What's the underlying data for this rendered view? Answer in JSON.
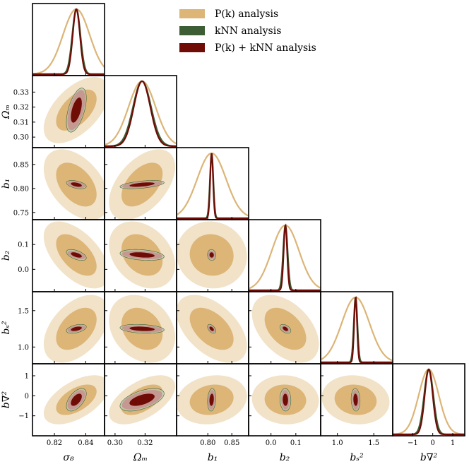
{
  "chart_data": {
    "type": "corner",
    "title": "",
    "parameters": [
      {
        "key": "sigma8",
        "label": "σ₈",
        "mean": 0.834,
        "range": [
          0.806,
          0.852
        ],
        "ticks": [
          0.82,
          0.84
        ],
        "tick_labels": [
          "0.82",
          "0.84"
        ]
      },
      {
        "key": "omegam",
        "label": "Ωₘ",
        "mean": 0.318,
        "range": [
          0.293,
          0.341
        ],
        "ticks": [
          0.3,
          0.32
        ],
        "tick_labels": [
          "0.30",
          "0.32"
        ],
        "y_ticks": [
          0.3,
          0.31,
          0.32,
          0.33
        ],
        "y_tick_labels": [
          "0.30",
          "0.31",
          "0.32",
          "0.33"
        ]
      },
      {
        "key": "b1",
        "label": "b₁",
        "mean": 0.808,
        "range": [
          0.735,
          0.885
        ],
        "ticks": [
          0.8,
          0.85
        ],
        "tick_labels": [
          "0.80",
          "0.85"
        ],
        "y_ticks": [
          0.75,
          0.8,
          0.85
        ],
        "y_tick_labels": [
          "0.75",
          "0.80",
          "0.85"
        ]
      },
      {
        "key": "b2",
        "label": "b₂",
        "mean": 0.058,
        "range": [
          -0.09,
          0.2
        ],
        "ticks": [
          0.0,
          0.1
        ],
        "tick_labels": [
          "0.0",
          "0.1"
        ],
        "y_ticks": [
          0.0,
          0.1
        ],
        "y_tick_labels": [
          "0.0",
          "0.1"
        ]
      },
      {
        "key": "bs2",
        "label": "bₛ²",
        "mean": 1.25,
        "range": [
          0.77,
          1.76
        ],
        "ticks": [
          1.0,
          1.5
        ],
        "tick_labels": [
          "1.0",
          "1.5"
        ],
        "y_ticks": [
          1.0,
          1.5
        ],
        "y_tick_labels": [
          "1.0",
          "1.5"
        ]
      },
      {
        "key": "bnabla2",
        "label": "b∇²",
        "mean": -0.2,
        "range": [
          -2.0,
          1.6
        ],
        "ticks": [
          -1,
          0,
          1
        ],
        "tick_labels": [
          "−1",
          "0",
          "1"
        ],
        "y_ticks": [
          -1,
          0,
          1
        ],
        "y_tick_labels": [
          "−1",
          "0",
          "1"
        ]
      }
    ],
    "series": [
      {
        "name": "P(k) analysis",
        "color_inner": "#dcb577",
        "color_outer": "#f1e2c8",
        "color_line": "#dcb577",
        "sigma": [
          0.0085,
          0.009,
          0.03,
          0.055,
          0.19,
          0.5
        ]
      },
      {
        "name": "kNN analysis",
        "color_inner": "#95a78a",
        "color_outer": "#b8c9ae",
        "color_line": "#3d5e34",
        "sigma": [
          0.0026,
          0.006,
          0.0035,
          0.009,
          0.025,
          0.23
        ]
      },
      {
        "name": "P(k) + kNN analysis",
        "color_inner": "#6e0c05",
        "color_outer": "#c5928e",
        "color_line": "#6e0c05",
        "sigma": [
          0.0023,
          0.0055,
          0.003,
          0.007,
          0.02,
          0.2
        ]
      }
    ],
    "correlations": {
      "omegam_sigma8": 0.55,
      "b1_sigma8": -0.45,
      "b1_omegam": 0.5,
      "b2_sigma8": -0.55,
      "b2_omegam": -0.3,
      "b2_b1": -0.05,
      "bs2_sigma8": 0.45,
      "bs2_omegam": -0.25,
      "bs2_b1": -0.5,
      "bs2_b2": -0.45,
      "bnabla2_sigma8": 0.55,
      "bnabla2_omegam": 0.55,
      "bnabla2_b1": 0.15,
      "bnabla2_b2": -0.05,
      "bnabla2_bs2": -0.1
    },
    "legend": {
      "position": "top-right",
      "entries": [
        "P(k) analysis",
        "kNN analysis",
        "P(k) + kNN analysis"
      ]
    }
  }
}
